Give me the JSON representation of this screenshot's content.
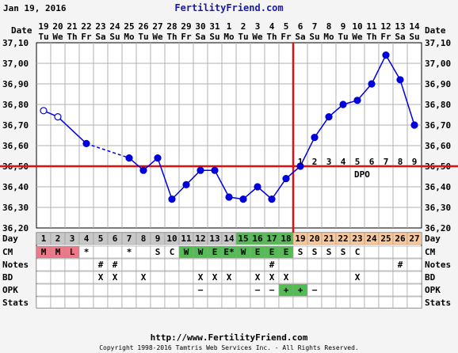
{
  "header": {
    "date": "Jan 19, 2016",
    "brand": "FertilityFriend.com"
  },
  "footer": {
    "url": "http://www.FertilityFriend.com",
    "copyright": "Copyright 1998-2016 Tamtris Web Services Inc. - All Rights Reserved."
  },
  "labels": {
    "date": "Date",
    "day": "Day",
    "cm": "CM",
    "notes": "Notes",
    "bd": "BD",
    "opk": "OPK",
    "stats": "Stats",
    "dpo": "DPO"
  },
  "colors": {
    "line": "#0000dd",
    "coverline": "#dd1111",
    "menses": "#ee7788",
    "fertile": "#55bb55",
    "luteal": "#f8c89a",
    "prefertile": "#c8c8c8"
  },
  "chart_data": {
    "type": "line",
    "y_ticks": [
      "36,20",
      "36,30",
      "36,40",
      "36,50",
      "36,60",
      "36,70",
      "36,80",
      "36,90",
      "37,00",
      "37,10"
    ],
    "ylim": [
      36.2,
      37.1
    ],
    "coverline": 36.5,
    "ovulation_day": 18,
    "dates": [
      "19",
      "20",
      "21",
      "22",
      "23",
      "24",
      "25",
      "26",
      "27",
      "28",
      "29",
      "30",
      "31",
      "1",
      "2",
      "3",
      "4",
      "5",
      "6",
      "7",
      "8",
      "9",
      "10",
      "11",
      "12",
      "13",
      "14"
    ],
    "weekdays": [
      "Tu",
      "We",
      "Th",
      "Fr",
      "Sa",
      "Su",
      "Mo",
      "Tu",
      "We",
      "Th",
      "Fr",
      "Sa",
      "Su",
      "Mo",
      "Tu",
      "We",
      "Th",
      "Fr",
      "Sa",
      "Su",
      "Mo",
      "Tu",
      "We",
      "Th",
      "Fr",
      "Sa",
      "Su"
    ],
    "days": [
      "1",
      "2",
      "3",
      "4",
      "5",
      "6",
      "7",
      "8",
      "9",
      "10",
      "11",
      "12",
      "13",
      "14",
      "15",
      "16",
      "17",
      "18",
      "19",
      "20",
      "21",
      "22",
      "23",
      "24",
      "25",
      "26",
      "27"
    ],
    "temps": [
      36.77,
      36.74,
      null,
      36.61,
      null,
      null,
      36.54,
      36.48,
      36.54,
      36.34,
      36.41,
      36.48,
      36.48,
      36.35,
      36.34,
      36.4,
      36.34,
      36.44,
      36.5,
      36.64,
      36.74,
      36.8,
      36.82,
      36.9,
      37.04,
      36.92,
      36.7
    ],
    "open_points": [
      1,
      2
    ],
    "dashed_segments": [
      [
        4,
        7
      ]
    ],
    "dpo": [
      "1",
      "2",
      "3",
      "4",
      "5",
      "6",
      "7",
      "8",
      "9"
    ],
    "cm": [
      "M",
      "M",
      "L",
      "*",
      "",
      "",
      "*",
      "",
      "S",
      "C",
      "W",
      "W",
      "E",
      "E*",
      "W",
      "E",
      "E",
      "E",
      "S",
      "S",
      "S",
      "S",
      "C",
      "",
      "",
      "",
      ""
    ],
    "notes": [
      "",
      "",
      "",
      "",
      "#",
      "#",
      "",
      "",
      "",
      "",
      "",
      "",
      "",
      "",
      "",
      "",
      "#",
      "",
      "",
      "",
      "",
      "",
      "",
      "",
      "",
      "#",
      ""
    ],
    "bd": [
      "",
      "",
      "",
      "",
      "X",
      "X",
      "",
      "X",
      "",
      "",
      "",
      "X",
      "X",
      "X",
      "",
      "X",
      "X",
      "X",
      "",
      "",
      "",
      "",
      "X",
      "",
      "",
      "",
      ""
    ],
    "opk": [
      "",
      "",
      "",
      "",
      "",
      "",
      "",
      "",
      "",
      "",
      "",
      "−",
      "",
      "",
      "",
      "−",
      "−",
      "+",
      "+",
      "−",
      "",
      "",
      "",
      "",
      "",
      "",
      ""
    ]
  }
}
